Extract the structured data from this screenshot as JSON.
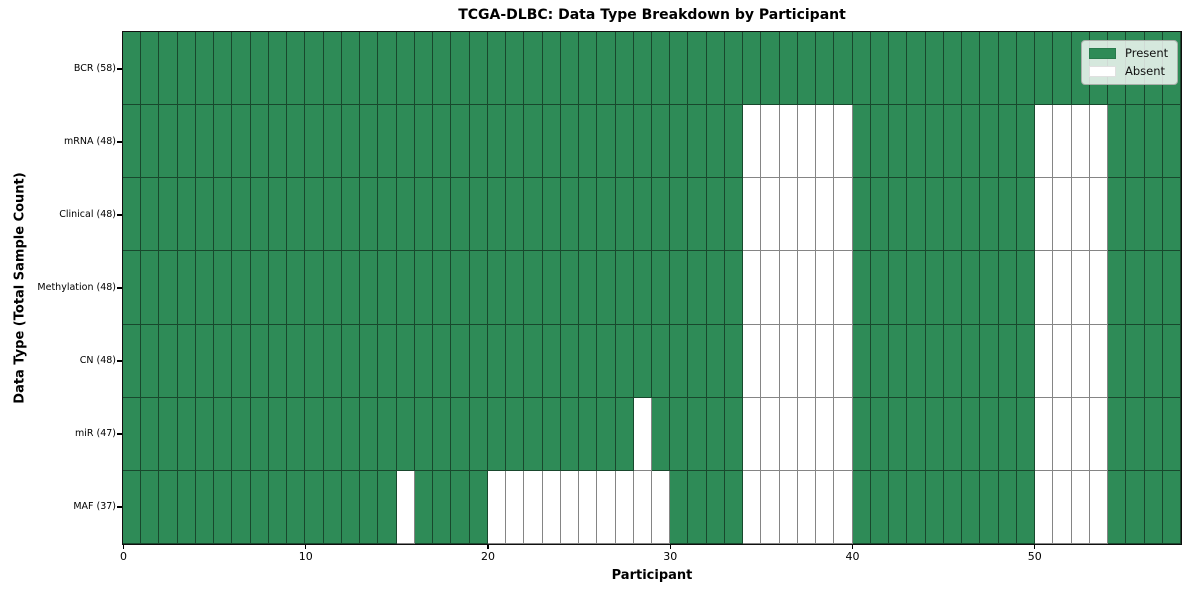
{
  "title": "TCGA-DLBC: Data Type Breakdown by Participant",
  "x_axis": {
    "label": "Participant",
    "ticks": [
      0,
      10,
      20,
      30,
      40,
      50
    ],
    "range": [
      0,
      58
    ]
  },
  "y_axis": {
    "label": "Data Type (Total Sample Count)"
  },
  "legend": {
    "items": [
      {
        "label": "Present",
        "color": "#2e8b57"
      },
      {
        "label": "Absent",
        "color": "#ffffff"
      }
    ]
  },
  "colors": {
    "present": "#2e8b57",
    "absent": "#ffffff",
    "gridline": "rgba(0,0,0,0.48)",
    "spine": "#111111"
  },
  "chart_data": {
    "type": "heatmap",
    "title": "TCGA-DLBC: Data Type Breakdown by Participant",
    "xlabel": "Participant",
    "ylabel": "Data Type (Total Sample Count)",
    "x_range": [
      0,
      58
    ],
    "n_participants": 58,
    "cell_states": [
      "Present",
      "Absent"
    ],
    "grid": true,
    "legend_position": "upper right",
    "rows": [
      {
        "label": "BCR (58)",
        "present_count": 58,
        "absent_participants": []
      },
      {
        "label": "mRNA (48)",
        "present_count": 48,
        "absent_participants": [
          34,
          35,
          36,
          37,
          38,
          39,
          50,
          51,
          52,
          53
        ]
      },
      {
        "label": "Clinical (48)",
        "present_count": 48,
        "absent_participants": [
          34,
          35,
          36,
          37,
          38,
          39,
          50,
          51,
          52,
          53
        ]
      },
      {
        "label": "Methylation (48)",
        "present_count": 48,
        "absent_participants": [
          34,
          35,
          36,
          37,
          38,
          39,
          50,
          51,
          52,
          53
        ]
      },
      {
        "label": "CN (48)",
        "present_count": 48,
        "absent_participants": [
          34,
          35,
          36,
          37,
          38,
          39,
          50,
          51,
          52,
          53
        ]
      },
      {
        "label": "miR (47)",
        "present_count": 47,
        "absent_participants": [
          28,
          34,
          35,
          36,
          37,
          38,
          39,
          50,
          51,
          52,
          53
        ]
      },
      {
        "label": "MAF (37)",
        "present_count": 37,
        "absent_participants": [
          15,
          20,
          21,
          22,
          23,
          24,
          25,
          26,
          27,
          28,
          29,
          34,
          35,
          36,
          37,
          38,
          39,
          50,
          51,
          52,
          53
        ]
      }
    ]
  }
}
